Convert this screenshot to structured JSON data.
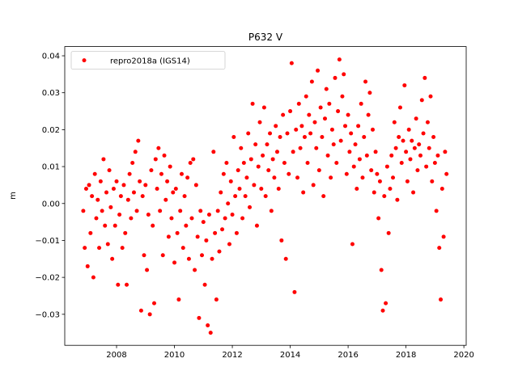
{
  "chart_data": {
    "type": "scatter",
    "title": "P632 V",
    "y_label": "m",
    "legend_position": "upper left",
    "xlim": [
      2006.21,
      2020.08
    ],
    "ylim": [
      -0.0384,
      0.0425
    ],
    "xticks": [
      2008,
      2010,
      2012,
      2014,
      2016,
      2018,
      2020
    ],
    "yticks": [
      {
        "value": -0.03,
        "label": "−0.03"
      },
      {
        "value": -0.02,
        "label": "−0.02"
      },
      {
        "value": -0.01,
        "label": "−0.01"
      },
      {
        "value": 0,
        "label": "0.00"
      },
      {
        "value": 0.01,
        "label": "0.01"
      },
      {
        "value": 0.02,
        "label": "0.02"
      },
      {
        "value": 0.03,
        "label": "0.03"
      },
      {
        "value": 0.04,
        "label": "0.04"
      }
    ],
    "x": [
      2006.85,
      2006.9,
      2006.95,
      2007.0,
      2007.05,
      2007.1,
      2007.15,
      2007.2,
      2007.25,
      2007.3,
      2007.35,
      2007.4,
      2007.45,
      2007.5,
      2007.55,
      2007.6,
      2007.65,
      2007.7,
      2007.75,
      2007.8,
      2007.85,
      2007.9,
      2007.95,
      2008.0,
      2008.05,
      2008.1,
      2008.15,
      2008.2,
      2008.25,
      2008.3,
      2008.35,
      2008.4,
      2008.45,
      2008.5,
      2008.55,
      2008.6,
      2008.65,
      2008.7,
      2008.75,
      2008.8,
      2008.85,
      2008.9,
      2008.95,
      2009.0,
      2009.05,
      2009.1,
      2009.15,
      2009.2,
      2009.25,
      2009.3,
      2009.35,
      2009.4,
      2009.45,
      2009.5,
      2009.55,
      2009.6,
      2009.65,
      2009.7,
      2009.75,
      2009.8,
      2009.85,
      2009.9,
      2009.95,
      2010.0,
      2010.05,
      2010.1,
      2010.15,
      2010.2,
      2010.25,
      2010.3,
      2010.35,
      2010.4,
      2010.45,
      2010.5,
      2010.55,
      2010.6,
      2010.65,
      2010.7,
      2010.75,
      2010.8,
      2010.85,
      2010.9,
      2010.95,
      2011.0,
      2011.05,
      2011.1,
      2011.15,
      2011.2,
      2011.25,
      2011.3,
      2011.35,
      2011.4,
      2011.45,
      2011.5,
      2011.55,
      2011.6,
      2011.65,
      2011.7,
      2011.75,
      2011.8,
      2011.85,
      2011.9,
      2011.95,
      2012.0,
      2012.05,
      2012.1,
      2012.15,
      2012.2,
      2012.25,
      2012.3,
      2012.35,
      2012.4,
      2012.45,
      2012.5,
      2012.55,
      2012.6,
      2012.65,
      2012.7,
      2012.75,
      2012.8,
      2012.85,
      2012.9,
      2012.95,
      2013.0,
      2013.05,
      2013.1,
      2013.15,
      2013.2,
      2013.25,
      2013.3,
      2013.35,
      2013.4,
      2013.45,
      2013.5,
      2013.55,
      2013.6,
      2013.65,
      2013.7,
      2013.75,
      2013.8,
      2013.85,
      2013.9,
      2013.95,
      2014.0,
      2014.05,
      2014.1,
      2014.15,
      2014.2,
      2014.25,
      2014.3,
      2014.35,
      2014.4,
      2014.45,
      2014.5,
      2014.55,
      2014.6,
      2014.65,
      2014.7,
      2014.75,
      2014.8,
      2014.85,
      2014.9,
      2014.95,
      2015.0,
      2015.05,
      2015.1,
      2015.15,
      2015.2,
      2015.25,
      2015.3,
      2015.35,
      2015.4,
      2015.45,
      2015.5,
      2015.55,
      2015.6,
      2015.65,
      2015.7,
      2015.75,
      2015.8,
      2015.85,
      2015.9,
      2015.95,
      2016.0,
      2016.05,
      2016.1,
      2016.15,
      2016.2,
      2016.25,
      2016.3,
      2016.35,
      2016.4,
      2016.45,
      2016.5,
      2016.55,
      2016.6,
      2016.65,
      2016.7,
      2016.75,
      2016.8,
      2016.85,
      2016.9,
      2016.95,
      2017.0,
      2017.05,
      2017.1,
      2017.15,
      2017.2,
      2017.25,
      2017.3,
      2017.35,
      2017.4,
      2017.45,
      2017.5,
      2017.55,
      2017.6,
      2017.65,
      2017.7,
      2017.75,
      2017.8,
      2017.85,
      2017.9,
      2017.95,
      2018.0,
      2018.05,
      2018.1,
      2018.15,
      2018.2,
      2018.25,
      2018.3,
      2018.35,
      2018.4,
      2018.45,
      2018.5,
      2018.55,
      2018.6,
      2018.65,
      2018.7,
      2018.75,
      2018.8,
      2018.85,
      2018.9,
      2018.95,
      2019.0,
      2019.05,
      2019.1,
      2019.15,
      2019.2,
      2019.25,
      2019.3,
      2019.35,
      2019.4
    ],
    "series": [
      {
        "name": "repro2018a (IGS14)",
        "color": "#ff0000",
        "values": [
          -0.002,
          -0.012,
          0.004,
          -0.017,
          0.005,
          -0.008,
          0.002,
          -0.02,
          0.008,
          -0.004,
          0.001,
          -0.012,
          0.006,
          -0.002,
          0.012,
          -0.006,
          0.003,
          -0.011,
          0.009,
          -0.001,
          -0.015,
          0.004,
          -0.006,
          0.006,
          -0.022,
          -0.003,
          0.002,
          -0.012,
          0.005,
          -0.008,
          -0.022,
          0.001,
          0.008,
          -0.004,
          0.011,
          0.003,
          0.014,
          -0.002,
          0.017,
          0.006,
          -0.029,
          0.002,
          -0.014,
          0.005,
          -0.018,
          -0.003,
          -0.03,
          0.009,
          -0.006,
          -0.027,
          0.012,
          0.004,
          0.015,
          -0.002,
          0.008,
          -0.014,
          0.013,
          0.001,
          0.006,
          -0.009,
          0.01,
          -0.004,
          0.003,
          -0.016,
          0.004,
          -0.008,
          -0.026,
          -0.002,
          0.008,
          -0.012,
          0.002,
          -0.006,
          0.007,
          -0.015,
          0.011,
          -0.004,
          0.012,
          -0.018,
          0.005,
          -0.009,
          -0.031,
          -0.002,
          -0.014,
          -0.005,
          -0.022,
          -0.01,
          -0.033,
          -0.003,
          -0.035,
          -0.015,
          0.014,
          -0.008,
          -0.026,
          -0.002,
          -0.013,
          0.003,
          -0.007,
          0.008,
          -0.004,
          0.011,
          0.0,
          -0.011,
          0.006,
          -0.003,
          0.018,
          0.002,
          -0.008,
          0.009,
          0.004,
          0.015,
          -0.004,
          0.011,
          0.002,
          0.007,
          0.019,
          -0.001,
          0.012,
          0.027,
          0.005,
          0.016,
          -0.006,
          0.01,
          0.022,
          0.004,
          0.013,
          0.026,
          0.002,
          0.016,
          0.009,
          0.019,
          -0.002,
          0.012,
          0.007,
          0.021,
          0.014,
          0.004,
          0.018,
          -0.01,
          0.024,
          0.011,
          -0.015,
          0.019,
          0.008,
          0.025,
          0.038,
          0.014,
          -0.024,
          0.02,
          0.007,
          0.027,
          0.015,
          0.021,
          0.003,
          0.018,
          0.029,
          0.011,
          0.024,
          0.019,
          0.033,
          0.005,
          0.022,
          0.015,
          0.036,
          0.009,
          0.026,
          0.018,
          0.002,
          0.023,
          0.031,
          0.013,
          0.027,
          0.007,
          0.02,
          0.016,
          0.034,
          0.011,
          0.025,
          0.039,
          0.017,
          0.029,
          0.035,
          0.021,
          0.008,
          0.024,
          0.014,
          0.019,
          -0.011,
          0.01,
          0.016,
          0.004,
          0.021,
          0.012,
          0.027,
          0.007,
          0.018,
          0.033,
          0.013,
          0.024,
          0.03,
          0.009,
          0.02,
          0.003,
          0.014,
          0.008,
          -0.004,
          0.006,
          -0.018,
          -0.029,
          0.002,
          -0.027,
          0.01,
          -0.008,
          0.004,
          0.013,
          0.007,
          0.022,
          0.015,
          0.001,
          0.018,
          0.026,
          0.011,
          0.017,
          0.032,
          0.014,
          0.006,
          0.02,
          0.012,
          0.017,
          0.003,
          0.015,
          0.023,
          0.009,
          0.016,
          0.013,
          0.028,
          0.019,
          0.034,
          0.01,
          0.022,
          0.015,
          0.029,
          0.006,
          0.018,
          0.011,
          -0.002,
          0.013,
          -0.012,
          -0.026,
          0.004,
          -0.009,
          0.014,
          0.008
        ]
      }
    ]
  }
}
